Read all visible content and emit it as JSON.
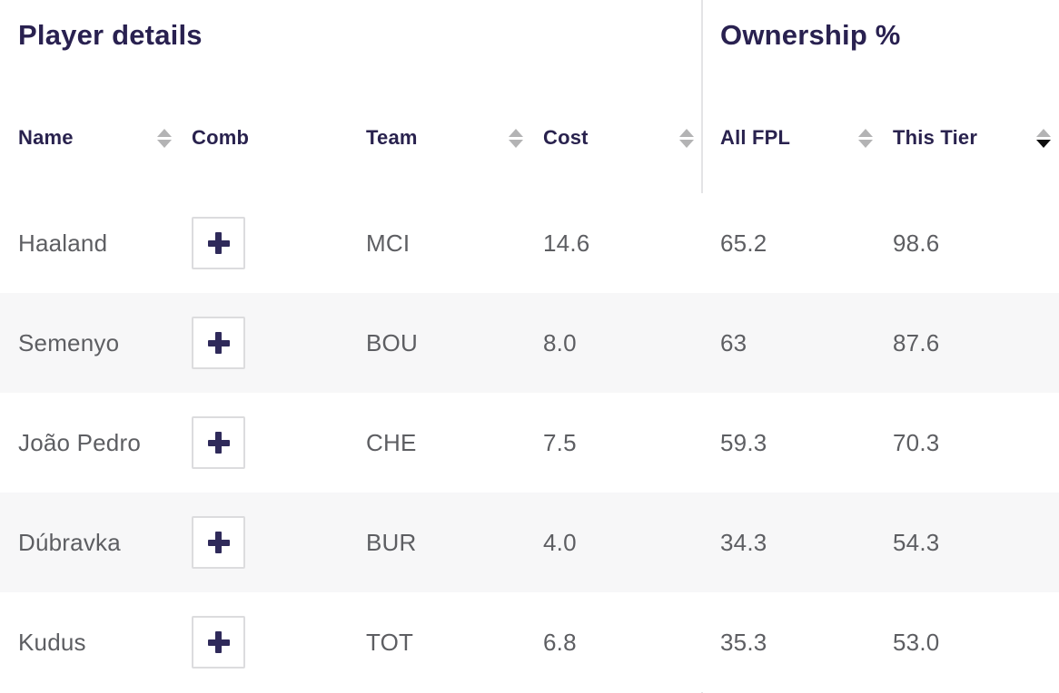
{
  "sections": {
    "left_title": "Player details",
    "right_title": "Ownership %"
  },
  "icons": {
    "sort": "sort-arrows-icon",
    "add": "plus-icon"
  },
  "colors": {
    "heading_navy": "#292150",
    "body_gray": "#5d5e62",
    "alt_row_bg": "#f7f7f8",
    "divider": "#e4e4e6",
    "sort_inactive": "#b3b3b4",
    "sort_active": "#0e0e0e",
    "button_border": "#dcdcde",
    "plus_navy": "#2f2a5a"
  },
  "table": {
    "columns": [
      {
        "label": "Name",
        "sortable": true,
        "sort": "none"
      },
      {
        "label": "Comb",
        "sortable": false,
        "sort": "none"
      },
      {
        "label": "Team",
        "sortable": true,
        "sort": "none"
      },
      {
        "label": "Cost",
        "sortable": true,
        "sort": "none"
      },
      {
        "label": "All FPL",
        "sortable": true,
        "sort": "none"
      },
      {
        "label": "This Tier",
        "sortable": true,
        "sort": "desc"
      }
    ],
    "rows": [
      {
        "name": "Haaland",
        "team": "MCI",
        "cost": "14.6",
        "all_fpl": "65.2",
        "this_tier": "98.6"
      },
      {
        "name": "Semenyo",
        "team": "BOU",
        "cost": "8.0",
        "all_fpl": "63",
        "this_tier": "87.6"
      },
      {
        "name": "João Pedro",
        "team": "CHE",
        "cost": "7.5",
        "all_fpl": "59.3",
        "this_tier": "70.3"
      },
      {
        "name": "Dúbravka",
        "team": "BUR",
        "cost": "4.0",
        "all_fpl": "34.3",
        "this_tier": "54.3"
      },
      {
        "name": "Kudus",
        "team": "TOT",
        "cost": "6.8",
        "all_fpl": "35.3",
        "this_tier": "53.0"
      }
    ]
  }
}
